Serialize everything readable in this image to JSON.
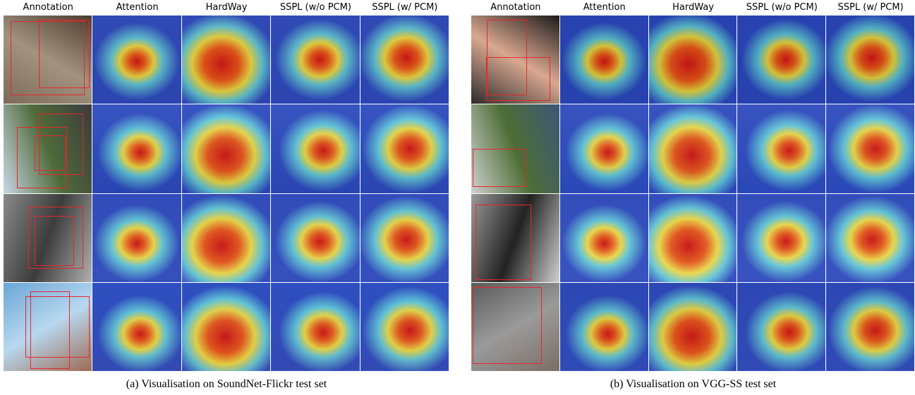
{
  "panels": [
    {
      "columns": [
        "Annotation",
        "Attention",
        "HardWay",
        "SSPL (w/o PCM)",
        "SSPL (w/ PCM)"
      ],
      "caption": "(a) Visualisation on SoundNet-Flickr test set"
    },
    {
      "columns": [
        "Annotation",
        "Attention",
        "HardWay",
        "SSPL (w/o PCM)",
        "SSPL (w/ PCM)"
      ],
      "caption": "(b) Visualisation on VGG-SS test set"
    }
  ]
}
